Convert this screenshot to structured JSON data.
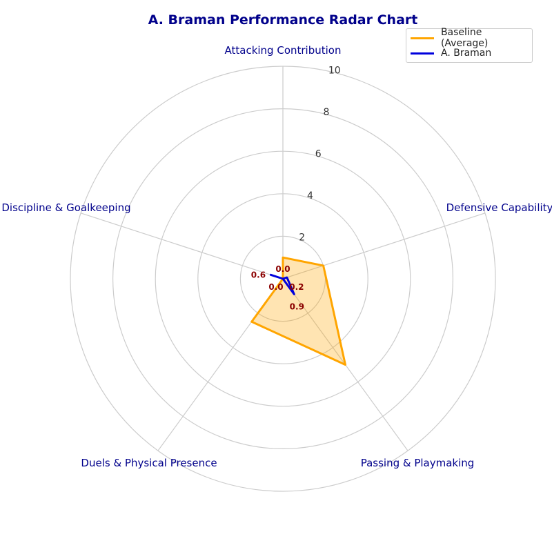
{
  "chart_data": {
    "type": "radar",
    "title": "A. Braman Performance Radar Chart",
    "categories": [
      "Attacking Contribution",
      "Defensive Capability",
      "Passing & Playmaking",
      "Duels & Physical Presence",
      "Discipline & Goalkeeping"
    ],
    "rlim": [
      0,
      10
    ],
    "radial_ticks": [
      2,
      4,
      6,
      8,
      10
    ],
    "grid": true,
    "legend_position": "top-right",
    "series": [
      {
        "name": "Baseline (Average)",
        "values": [
          1.0,
          2.0,
          5.0,
          2.5,
          0.0
        ],
        "color": "#ffa500",
        "fill": "#ffa500",
        "show_labels": false
      },
      {
        "name": "A. Braman",
        "values": [
          0.0,
          0.2,
          0.9,
          0.0,
          0.6
        ],
        "color": "#0000dd",
        "fill": null,
        "show_labels": true
      }
    ],
    "value_labels": [
      "0.0",
      "0.2",
      "0.9",
      "0.0",
      "0.6"
    ],
    "label_color": "#8b0000",
    "category_label_color": "#00008b"
  }
}
